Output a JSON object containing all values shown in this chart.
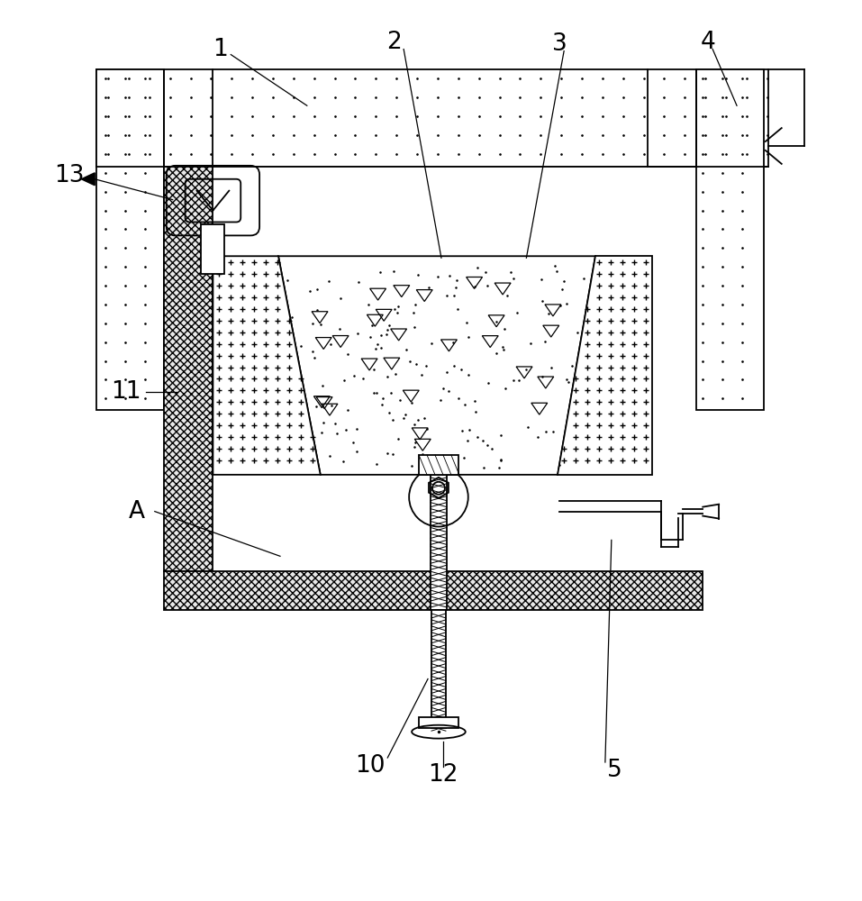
{
  "fig_width": 9.57,
  "fig_height": 10.0,
  "background_color": "#ffffff",
  "line_color": "#000000"
}
